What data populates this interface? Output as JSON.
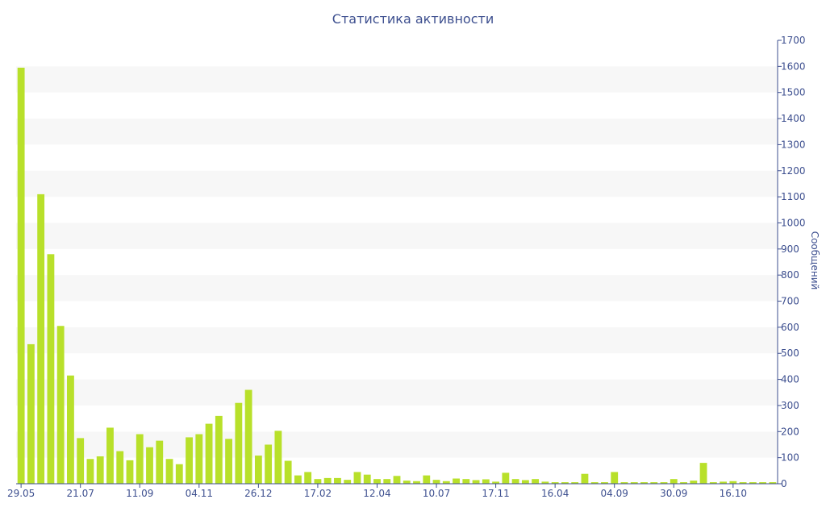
{
  "chart_data": {
    "type": "bar",
    "title": "Статистика активности",
    "ylabel": "Сообщений",
    "xlabel": "",
    "ylim": [
      0,
      1700
    ],
    "yticks": [
      0,
      100,
      200,
      300,
      400,
      500,
      600,
      700,
      800,
      900,
      1000,
      1100,
      1200,
      1300,
      1400,
      1500,
      1600,
      1700
    ],
    "grid": true,
    "bar_color": "#b8e02a",
    "band_color": "#f7f7f7",
    "axis_color": "#3d4f8f",
    "x_tick_labels": [
      "29.05",
      "21.07",
      "11.09",
      "04.11",
      "26.12",
      "17.02",
      "12.04",
      "10.07",
      "17.11",
      "16.04",
      "04.09",
      "30.09",
      "16.10"
    ],
    "x_tick_bar_index": [
      0,
      6,
      12,
      18,
      24,
      30,
      36,
      42,
      48,
      54,
      60,
      66,
      72
    ],
    "values": [
      1595,
      535,
      1110,
      880,
      605,
      415,
      175,
      95,
      105,
      215,
      125,
      90,
      190,
      140,
      165,
      95,
      75,
      178,
      190,
      230,
      260,
      172,
      310,
      360,
      108,
      150,
      203,
      88,
      32,
      45,
      18,
      22,
      22,
      15,
      45,
      35,
      18,
      18,
      30,
      12,
      10,
      32,
      15,
      10,
      20,
      18,
      14,
      17,
      8,
      42,
      18,
      14,
      18,
      8,
      6,
      6,
      6,
      38,
      6,
      6,
      45,
      6,
      6,
      6,
      6,
      6,
      18,
      6,
      12,
      80,
      6,
      8,
      10,
      6,
      6,
      6,
      6
    ]
  }
}
